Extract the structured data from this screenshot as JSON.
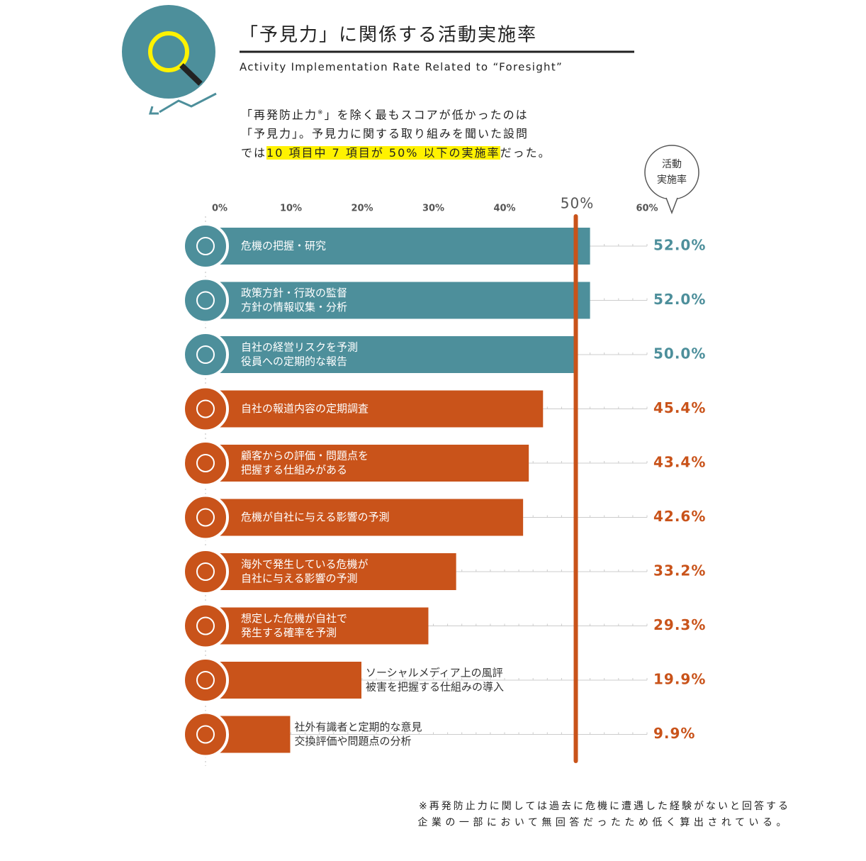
{
  "chart_data": {
    "type": "bar",
    "title": "「予見力」に関係する活動実施率",
    "subtitle": "Activity Implementation Rate Related to “Foresight”",
    "description": {
      "line1_a": "「再発防止力",
      "line1_sup": "※",
      "line1_b": "」を除く最もスコアが低かったのは",
      "line2": "「予見力」。予見力に関する取り組みを聞いた設問",
      "line3_a": "では",
      "highlight": "10 項目中 7 項目が 50% 以下の実施率",
      "line3_b": "だった。"
    },
    "value_header": [
      "活動",
      "実施率"
    ],
    "categories": [
      [
        "危機の把握・研究"
      ],
      [
        "政策方針・行政の監督",
        "方針の情報収集・分析"
      ],
      [
        "自社の経営リスクを予測",
        "役員への定期的な報告"
      ],
      [
        "自社の報道内容の定期調査"
      ],
      [
        "顧客からの評価・問題点を",
        "把握する仕組みがある"
      ],
      [
        "危機が自社に与える影響の予測"
      ],
      [
        "海外で発生している危機が",
        "自社に与える影響の予測"
      ],
      [
        "想定した危機が自社で",
        "発生する確率を予測"
      ],
      [
        "ソーシャルメディア上の風評",
        "被害を把握する仕組みの導入"
      ],
      [
        "社外有識者と定期的な意見",
        "交換評価や問題点の分析"
      ]
    ],
    "values": [
      52.0,
      52.0,
      50.0,
      45.4,
      43.4,
      42.6,
      33.2,
      29.3,
      19.9,
      9.9
    ],
    "value_labels": [
      "52.0%",
      "52.0%",
      "50.0%",
      "45.4%",
      "43.4%",
      "42.6%",
      "33.2%",
      "29.3%",
      "19.9%",
      "9.9%"
    ],
    "colors": [
      "#4d8f9b",
      "#4d8f9b",
      "#4d8f9b",
      "#c9531a",
      "#c9531a",
      "#c9531a",
      "#c9531a",
      "#c9531a",
      "#c9531a",
      "#c9531a"
    ],
    "xlim": [
      0,
      60
    ],
    "xticks": [
      {
        "value": 0,
        "label": "0%"
      },
      {
        "value": 10,
        "label": "10%"
      },
      {
        "value": 20,
        "label": "20%"
      },
      {
        "value": 30,
        "label": "30%"
      },
      {
        "value": 40,
        "label": "40%"
      },
      {
        "value": 60,
        "label": "60%"
      }
    ],
    "reference_line": {
      "value": 50,
      "label": "50%",
      "color": "#c9531a"
    },
    "footnote": [
      "※再発防止力に関しては過去に危機に遭遇した経験がないと回答する",
      "企業の一部において無回答だったため低く算出されている。"
    ]
  }
}
